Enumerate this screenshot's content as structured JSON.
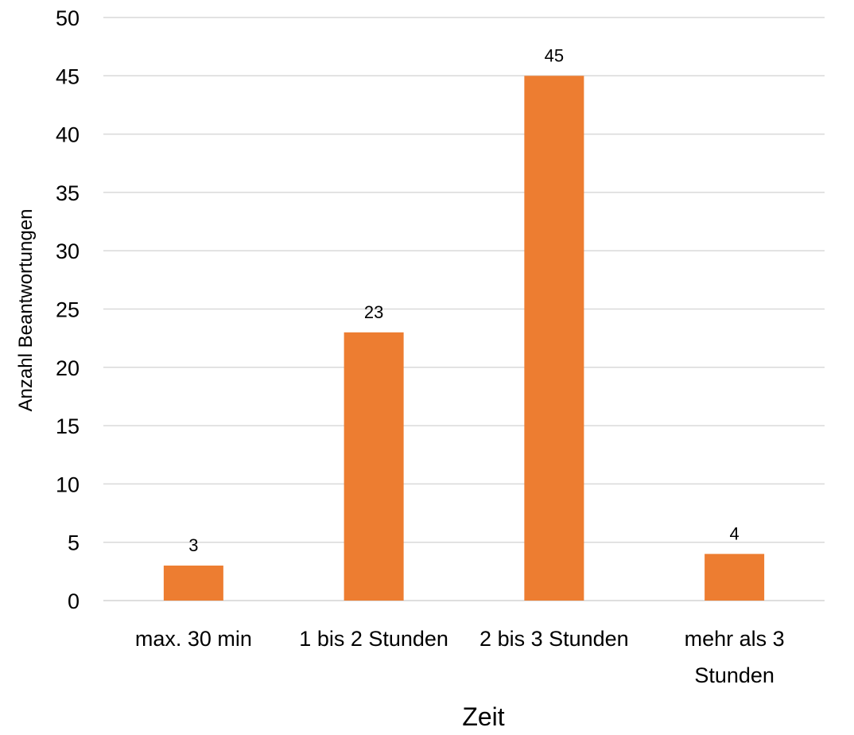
{
  "chart_data": {
    "type": "bar",
    "categories": [
      "max. 30 min",
      "1 bis 2 Stunden",
      "2 bis 3 Stunden",
      "mehr als 3 Stunden"
    ],
    "category_lines": [
      [
        "max. 30 min"
      ],
      [
        "1 bis 2 Stunden"
      ],
      [
        "2 bis 3 Stunden"
      ],
      [
        "mehr als 3",
        "Stunden"
      ]
    ],
    "values": [
      3,
      23,
      45,
      4
    ],
    "data_labels": [
      "3",
      "23",
      "45",
      "4"
    ],
    "title": "",
    "xlabel": "Zeit",
    "ylabel": "Anzahl Beantwortungen",
    "ylim": [
      0,
      50
    ],
    "yticks": [
      0,
      5,
      10,
      15,
      20,
      25,
      30,
      35,
      40,
      45,
      50
    ],
    "grid": true,
    "bar_color": "#ED7D31",
    "grid_color": "#D9D9D9"
  }
}
